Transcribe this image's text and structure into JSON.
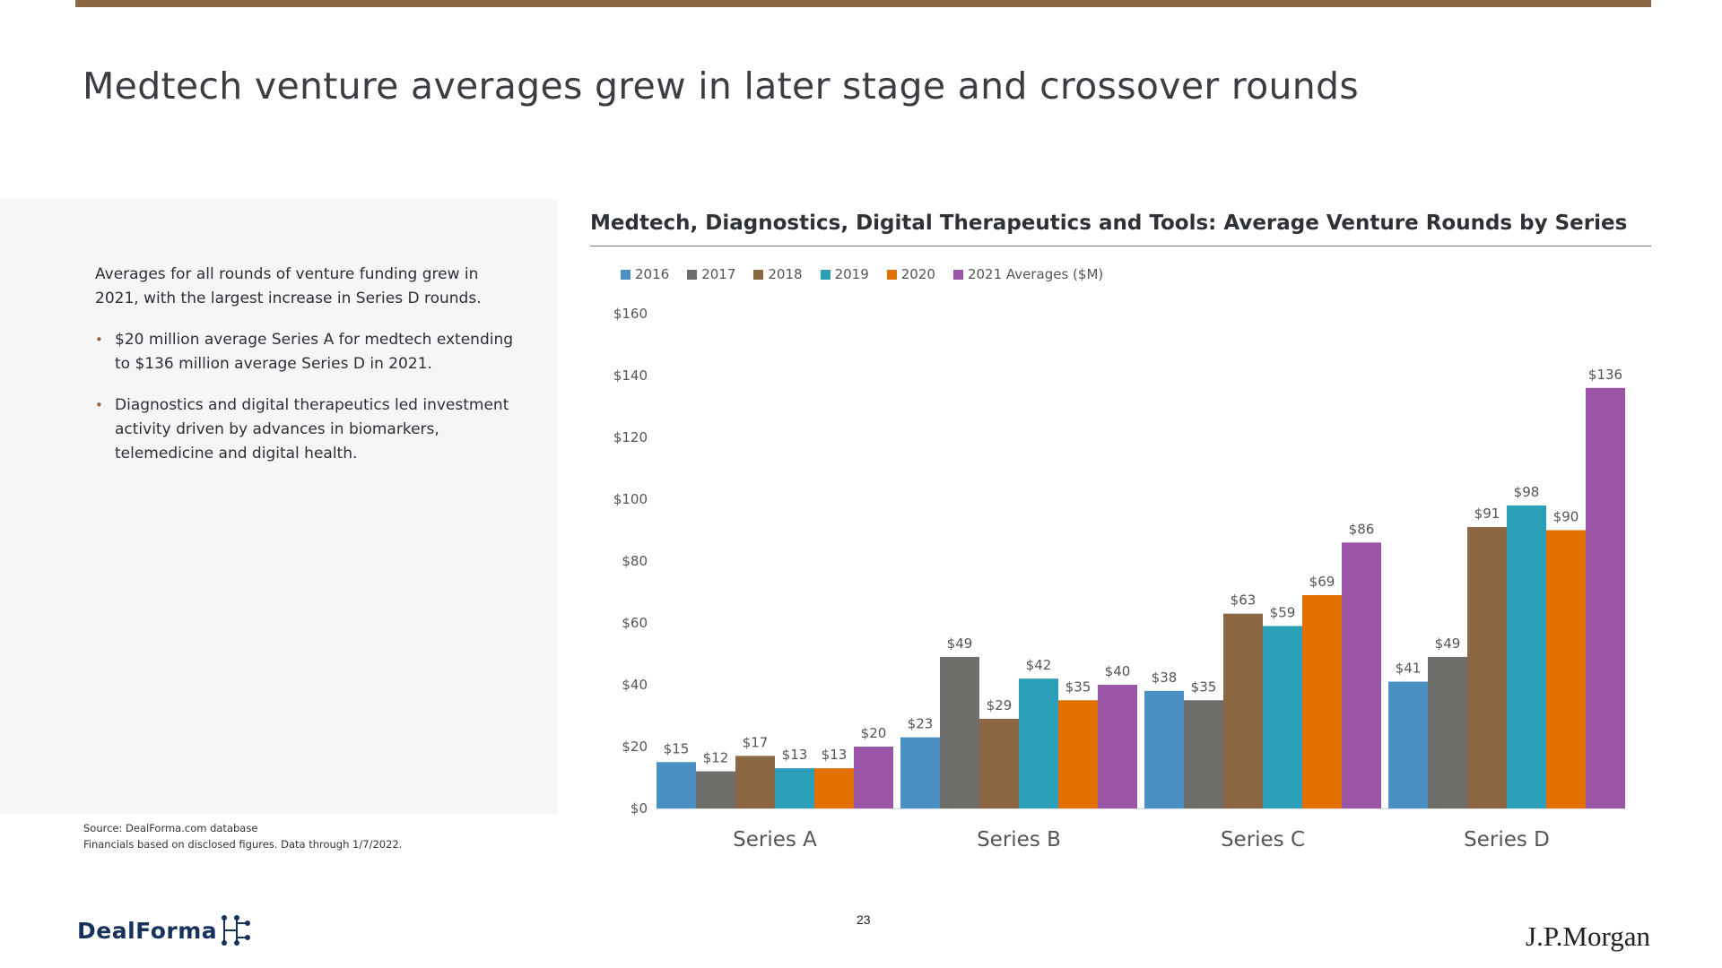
{
  "page": {
    "title": "Medtech venture averages grew in later stage and crossover rounds",
    "intro": "Averages for all rounds of venture funding grew in 2021, with the largest increase in Series D rounds.",
    "bullets": [
      "$20 million average Series A for medtech extending to $136 million average Series D in 2021.",
      "Diagnostics and digital therapeutics led investment activity driven by advances in biomarkers, telemedicine and digital health."
    ],
    "source_line1": "Source: DealForma.com database",
    "source_line2": "Financials based on disclosed figures. Data through 1/7/2022.",
    "page_number": "23",
    "logo_left": "DealForma",
    "logo_right": "J.P.Morgan"
  },
  "colors": {
    "accent_bar": "#8c6744",
    "series": [
      "#4a90c2",
      "#6e6e6a",
      "#8c6744",
      "#2b9eb8",
      "#e07000",
      "#9b55a6"
    ]
  },
  "chart_data": {
    "type": "bar",
    "title": "Medtech, Diagnostics, Digital Therapeutics and Tools: Average Venture Rounds by Series",
    "categories": [
      "Series A",
      "Series B",
      "Series C",
      "Series D"
    ],
    "series": [
      {
        "name": "2016",
        "values": [
          15,
          23,
          38,
          41
        ]
      },
      {
        "name": "2017",
        "values": [
          12,
          49,
          35,
          49
        ]
      },
      {
        "name": "2018",
        "values": [
          17,
          29,
          63,
          91
        ]
      },
      {
        "name": "2019",
        "values": [
          13,
          42,
          59,
          98
        ]
      },
      {
        "name": "2020",
        "values": [
          13,
          35,
          69,
          90
        ]
      },
      {
        "name": "2021 Averages ($M)",
        "values": [
          20,
          40,
          86,
          136
        ]
      }
    ],
    "value_prefix": "$",
    "ylim": [
      0,
      160
    ],
    "yticks": [
      "$0",
      "$20",
      "$40",
      "$60",
      "$80",
      "$100",
      "$120",
      "$140",
      "$160"
    ],
    "legend_position": "top-left",
    "grid": false
  }
}
